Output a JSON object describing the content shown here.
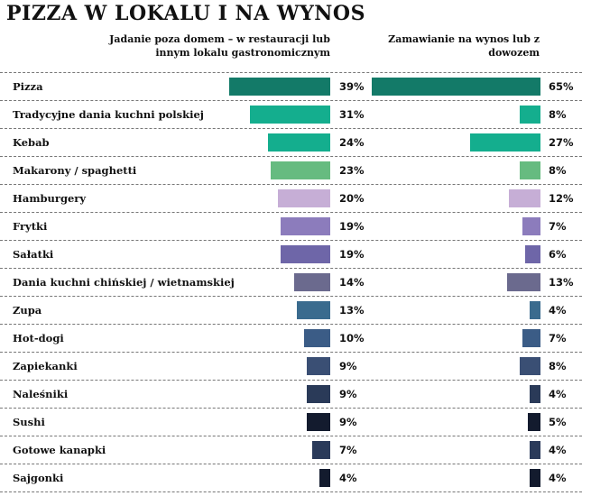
{
  "chart_data": {
    "type": "bar",
    "title": "PIZZA W LOKALU I NA WYNOS",
    "categories": [
      "Pizza",
      "Tradycyjne dania kuchni polskiej",
      "Kebab",
      "Makarony / spaghetti",
      "Hamburgery",
      "Frytki",
      "Sałatki",
      "Dania kuchni chińskiej / wietnamskiej",
      "Zupa",
      "Hot-dogi",
      "Zapiekanki",
      "Naleśniki",
      "Sushi",
      "Gotowe kanapki",
      "Sajgonki"
    ],
    "series": [
      {
        "name": "Jadanie poza domem – w restauracji lub innym lokalu gastronomicznym",
        "values": [
          39,
          31,
          24,
          23,
          20,
          19,
          19,
          14,
          13,
          10,
          9,
          9,
          9,
          7,
          4
        ]
      },
      {
        "name": "Zamawianie na wynos lub z dowozem",
        "values": [
          65,
          8,
          27,
          8,
          12,
          7,
          6,
          13,
          4,
          7,
          8,
          4,
          5,
          4,
          4
        ]
      }
    ],
    "colors": [
      "#137a68",
      "#14ae8e",
      "#14ae8e",
      "#66bb80",
      "#c6aed6",
      "#8c7cbc",
      "#6e66a8",
      "#6b6a8e",
      "#3a6b8e",
      "#3b5c86",
      "#3a4f74",
      "#2a3a58",
      "#131b2e",
      "#2a3a5a",
      "#131b2e"
    ],
    "unit": "%",
    "legend": "top"
  }
}
